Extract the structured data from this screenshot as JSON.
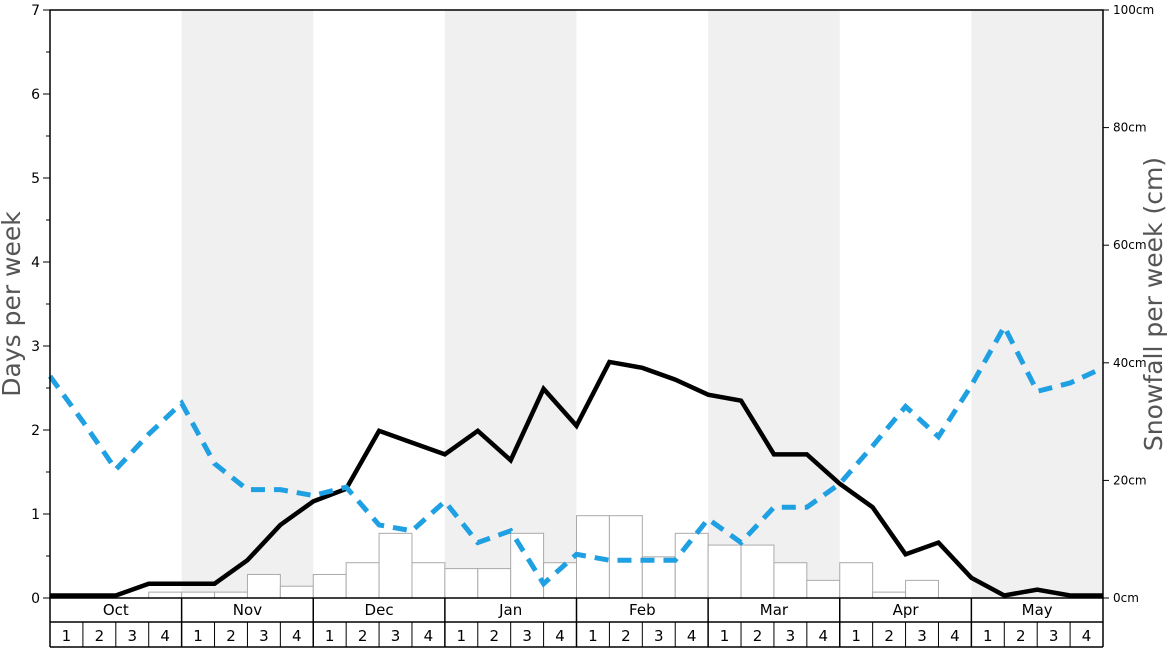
{
  "chart_data": {
    "type": "bar+line",
    "title": "",
    "ylabel": "Days per week",
    "y2label": "Snowfall per week (cm)",
    "ylim": [
      0,
      7
    ],
    "y2lim": [
      0,
      100
    ],
    "yticks": [
      0,
      1,
      2,
      3,
      4,
      5,
      6,
      7
    ],
    "y2ticks": [
      {
        "value": 0,
        "label": "0cm"
      },
      {
        "value": 20,
        "label": "20cm"
      },
      {
        "value": 40,
        "label": "40cm"
      },
      {
        "value": 60,
        "label": "60cm"
      },
      {
        "value": 80,
        "label": "80cm"
      },
      {
        "value": 100,
        "label": "100cm"
      }
    ],
    "months": [
      "Oct",
      "Nov",
      "Dec",
      "Jan",
      "Feb",
      "Mar",
      "Apr",
      "May"
    ],
    "week_labels": [
      "1",
      "2",
      "3",
      "4"
    ],
    "shaded_months": [
      false,
      true,
      false,
      true,
      false,
      true,
      false,
      true
    ],
    "shade_color": "#f0f0f0",
    "series": [
      {
        "kind": "bar",
        "axis": "right",
        "color": "#ffffff",
        "stroke": "#aaaaaa",
        "values": [
          0,
          0,
          0,
          1,
          1,
          1,
          4,
          2,
          4,
          6,
          11,
          6,
          5,
          5,
          11,
          6,
          14,
          14,
          7,
          11,
          9,
          9,
          6,
          3,
          6,
          1,
          3,
          0,
          0,
          0,
          0,
          0
        ]
      },
      {
        "kind": "line",
        "axis": "left",
        "color": "#000000",
        "style": "solid",
        "values": [
          0.03,
          0.03,
          0.03,
          0.17,
          0.17,
          0.17,
          0.45,
          0.87,
          1.15,
          1.3,
          1.99,
          1.85,
          1.71,
          1.99,
          1.64,
          2.49,
          2.05,
          2.81,
          2.74,
          2.6,
          2.42,
          2.35,
          1.71,
          1.71,
          1.36,
          1.08,
          0.52,
          0.66,
          0.24,
          0.03,
          0.1,
          0.03,
          0.03
        ]
      },
      {
        "kind": "line",
        "axis": "left",
        "color": "#1fa0e2",
        "style": "dashed",
        "values": [
          2.64,
          2.1,
          1.53,
          1.95,
          2.32,
          1.6,
          1.29,
          1.29,
          1.22,
          1.32,
          0.87,
          0.8,
          1.15,
          0.66,
          0.8,
          0.17,
          0.52,
          0.45,
          0.45,
          0.45,
          0.94,
          0.66,
          1.08,
          1.08,
          1.36,
          1.81,
          2.28,
          1.92,
          2.53,
          3.23,
          2.46,
          2.56,
          2.74
        ]
      }
    ]
  }
}
